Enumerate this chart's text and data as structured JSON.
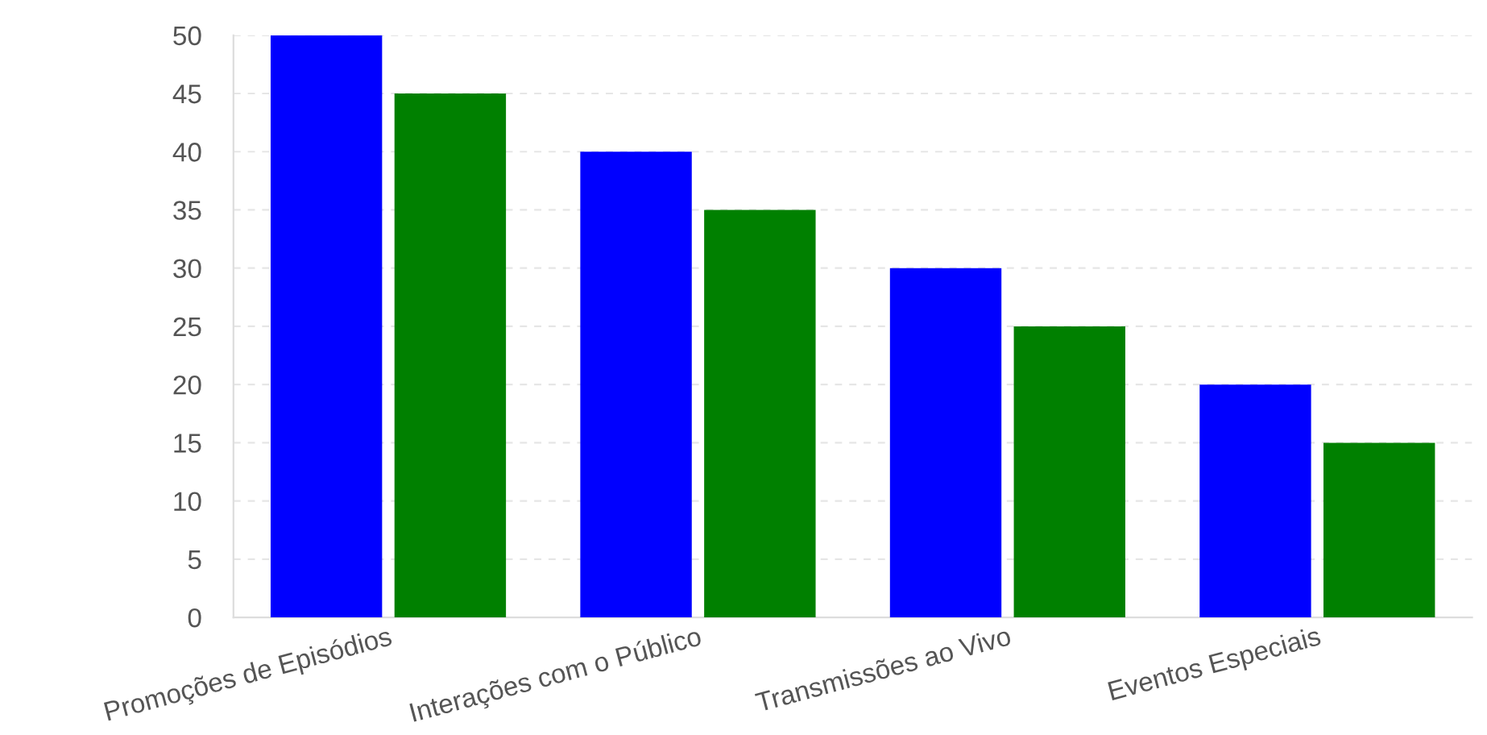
{
  "chart_data": {
    "type": "bar",
    "categories": [
      "Promoções de Episódios",
      "Interações com o Público",
      "Transmissões ao Vivo",
      "Eventos Especiais"
    ],
    "series": [
      {
        "color": "#0000ff",
        "values": [
          50,
          40,
          30,
          20
        ]
      },
      {
        "color": "#008000",
        "values": [
          45,
          35,
          25,
          15
        ]
      }
    ],
    "ylim": [
      0,
      50
    ],
    "yticks": [
      0,
      5,
      10,
      15,
      20,
      25,
      30,
      35,
      40,
      45,
      50
    ],
    "grid": "y"
  }
}
